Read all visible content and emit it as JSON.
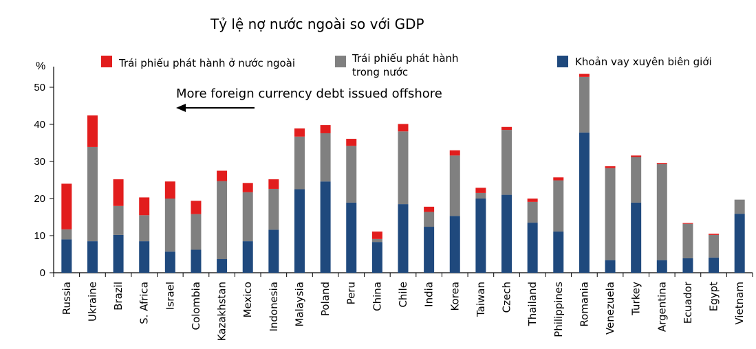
{
  "chart_data": {
    "type": "bar",
    "stacked": true,
    "title": "Tỷ lệ nợ nước ngoài so với GDP",
    "ylabel": "%",
    "ylim": [
      0,
      55
    ],
    "yticks": [
      0,
      10,
      20,
      30,
      40,
      50
    ],
    "grid": false,
    "legend_position": "top",
    "annotation": "More foreign currency debt issued offshore",
    "categories": [
      "Russia",
      "Ukraine",
      "Brazil",
      "S. Africa",
      "Israel",
      "Colombia",
      "Kazakhstan",
      "Mexico",
      "Indonesia",
      "Malaysia",
      "Poland",
      "Peru",
      "China",
      "Chile",
      "India",
      "Korea",
      "Taiwan",
      "Czech",
      "Thailand",
      "Philippines",
      "Romania",
      "Venezuela",
      "Turkey",
      "Argentina",
      "Ecuador",
      "Egypt",
      "Vietnam"
    ],
    "series": [
      {
        "name": "Khoản vay xuyên biên giới",
        "color": "#1f497d",
        "values": [
          9,
          8.5,
          10.2,
          8.5,
          5.7,
          6.2,
          3.7,
          8.5,
          11.6,
          22.5,
          24.6,
          18.9,
          8.3,
          18.5,
          12.4,
          15.3,
          20.0,
          21.0,
          13.5,
          11.1,
          37.8,
          3.4,
          18.9,
          3.4,
          3.9,
          4.1,
          15.9
        ]
      },
      {
        "name": "Trái phiếu phát hành trong nước",
        "color": "#808080",
        "values": [
          2.7,
          25.4,
          7.8,
          7.0,
          14.3,
          9.6,
          21.0,
          13.2,
          11.0,
          14.2,
          13.0,
          15.3,
          0.8,
          19.6,
          4.0,
          16.3,
          1.5,
          17.5,
          5.6,
          13.8,
          15.0,
          24.8,
          12.3,
          25.9,
          9.3,
          6.1,
          3.8
        ]
      },
      {
        "name": "Trái phiếu phát hành ở nước ngoài",
        "color": "#e21d1d",
        "values": [
          12.3,
          8.5,
          7.2,
          4.8,
          4.6,
          3.6,
          2.8,
          2.5,
          2.6,
          2.2,
          2.2,
          1.9,
          2.0,
          2.0,
          1.4,
          1.4,
          1.4,
          0.8,
          0.9,
          0.8,
          0.8,
          0.5,
          0.4,
          0.3,
          0.2,
          0.3,
          0
        ]
      }
    ],
    "legend": [
      {
        "label": "Trái phiếu phát hành ở nước ngoài",
        "color": "#e21d1d"
      },
      {
        "label_lines": [
          "Trái phiếu phát hành",
          "trong nước"
        ],
        "color": "#808080"
      },
      {
        "label": "Khoản vay xuyên biên giới",
        "color": "#1f497d"
      }
    ]
  }
}
